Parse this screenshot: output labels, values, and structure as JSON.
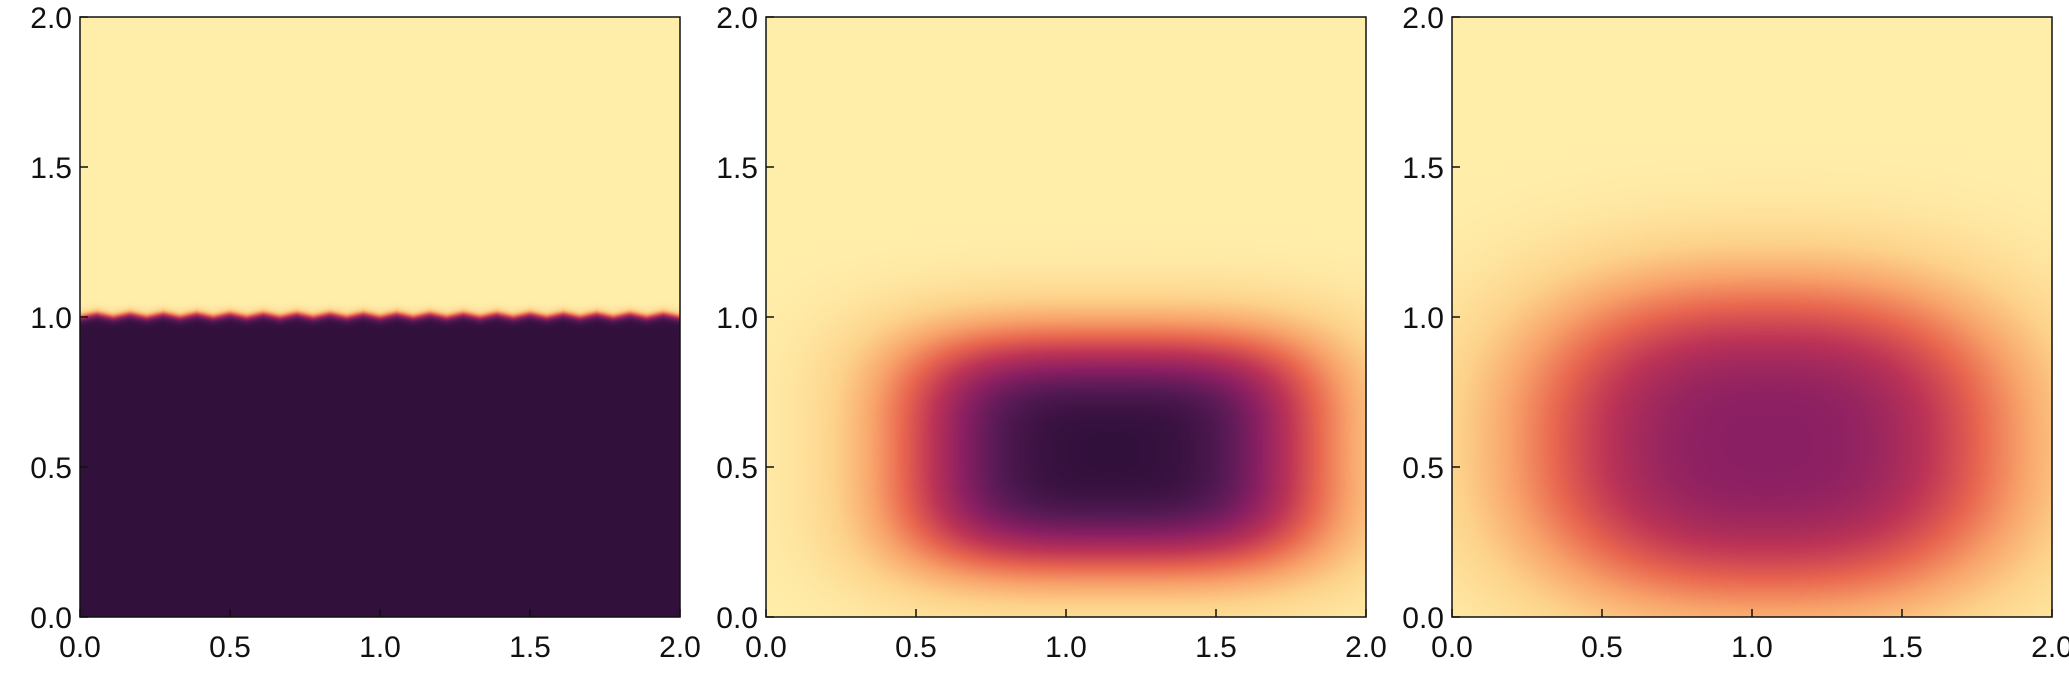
{
  "chart_data": [
    {
      "type": "heatmap",
      "panel": "left",
      "xlim": [
        0.0,
        2.0
      ],
      "ylim": [
        0.0,
        2.0
      ],
      "x_ticks": [
        "0.0",
        "0.5",
        "1.0",
        "1.5",
        "2.0"
      ],
      "y_ticks": [
        "0.0",
        "0.5",
        "1.0",
        "1.5",
        "2.0"
      ],
      "grid": false,
      "colormap": "inferno-like",
      "field": "step",
      "interface_y": 1.0,
      "value_below": 1.0,
      "value_above": 0.0,
      "interface_wave_count": 18,
      "interface_wave_amplitude": 0.012
    },
    {
      "type": "heatmap",
      "panel": "middle",
      "xlim": [
        0.0,
        2.0
      ],
      "ylim": [
        0.0,
        2.0
      ],
      "x_ticks": [
        "0.0",
        "0.5",
        "1.0",
        "1.5",
        "2.0"
      ],
      "y_ticks": [
        "0.0",
        "0.5",
        "1.0",
        "1.5",
        "2.0"
      ],
      "grid": false,
      "colormap": "inferno-like",
      "field": "blob",
      "center": [
        1.15,
        0.55
      ],
      "half_width": [
        0.72,
        0.4
      ],
      "shape_exponent": 3.5,
      "peak_value": 1.0
    },
    {
      "type": "heatmap",
      "panel": "right",
      "xlim": [
        0.0,
        2.0
      ],
      "ylim": [
        0.0,
        2.0
      ],
      "x_ticks": [
        "0.0",
        "0.5",
        "1.0",
        "1.5",
        "2.0"
      ],
      "y_ticks": [
        "0.0",
        "0.5",
        "1.0",
        "1.5",
        "2.0"
      ],
      "grid": false,
      "colormap": "inferno-like",
      "field": "blob",
      "center": [
        1.05,
        0.58
      ],
      "half_width": [
        0.85,
        0.55
      ],
      "shape_exponent": 2.5,
      "peak_value": 0.75
    }
  ],
  "colormap_stops": [
    {
      "v": 0.0,
      "color": "#ffeeaa"
    },
    {
      "v": 0.15,
      "color": "#fdd28a"
    },
    {
      "v": 0.3,
      "color": "#f8a26a"
    },
    {
      "v": 0.45,
      "color": "#e8654f"
    },
    {
      "v": 0.6,
      "color": "#bd3456"
    },
    {
      "v": 0.75,
      "color": "#8a1f63"
    },
    {
      "v": 0.88,
      "color": "#561a55"
    },
    {
      "v": 1.0,
      "color": "#32103c"
    }
  ]
}
